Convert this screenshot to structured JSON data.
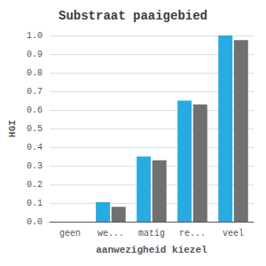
{
  "chart_data": {
    "type": "bar",
    "title": "Substraat paaigebied",
    "xlabel": "aanwezigheid kiezel",
    "ylabel": "HGI",
    "categories": [
      "geen",
      "we...",
      "matig",
      "re...",
      "veel"
    ],
    "series": [
      {
        "color": "#29ABE2",
        "values": [
          0.0,
          0.105,
          0.35,
          0.65,
          1.0
        ]
      },
      {
        "color": "#707070",
        "values": [
          0.0,
          0.08,
          0.33,
          0.63,
          0.975
        ]
      }
    ],
    "ylim": [
      0.0,
      1.0
    ],
    "yticks": [
      {
        "value": 0.0,
        "label": "0.0"
      },
      0.1,
      0.2,
      0.3,
      0.4,
      0.5,
      0.6,
      0.7,
      0.8,
      0.9,
      {
        "value": 1.0,
        "label": "1.0"
      }
    ],
    "grid": true
  }
}
